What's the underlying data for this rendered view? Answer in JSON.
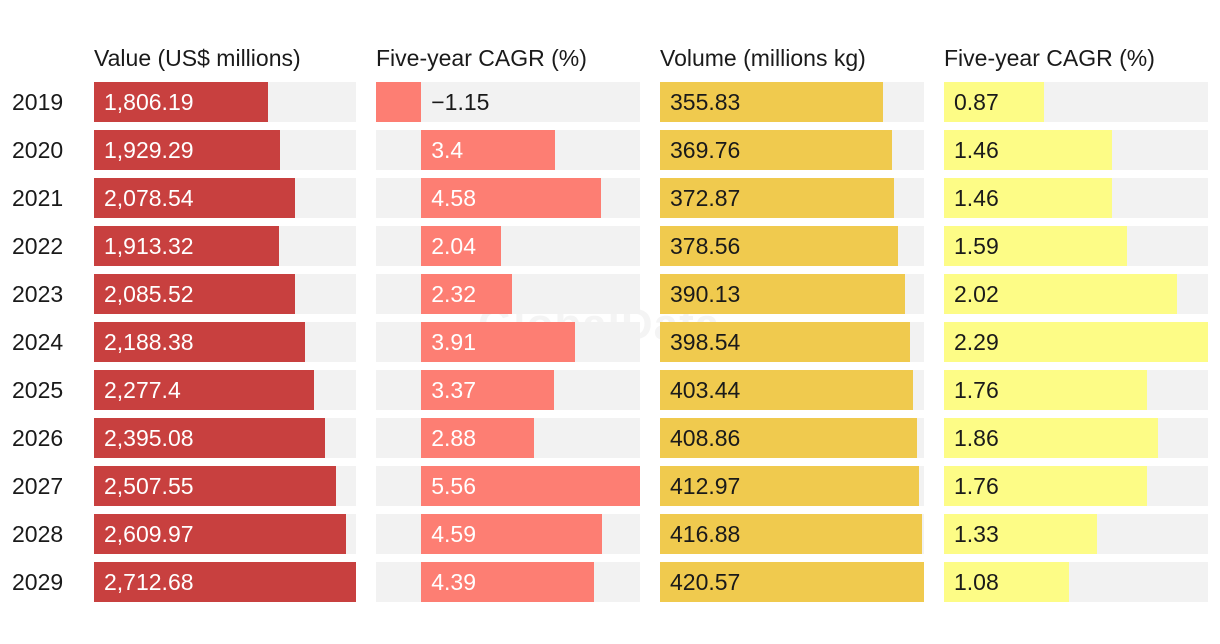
{
  "watermark": "GlobalData",
  "chart_data": {
    "type": "table",
    "title": "",
    "years": [
      "2019",
      "2020",
      "2021",
      "2022",
      "2023",
      "2024",
      "2025",
      "2026",
      "2027",
      "2028",
      "2029"
    ],
    "columns": [
      {
        "key": "value",
        "header": "Value (US$ millions)",
        "color": "#c8403f",
        "track_color": "#f2f2f2",
        "text_color": "#ffffff",
        "values": [
          1806.19,
          1929.29,
          2078.54,
          1913.32,
          2085.52,
          2188.38,
          2277.4,
          2395.08,
          2507.55,
          2609.97,
          2712.68
        ],
        "labels": [
          "1,806.19",
          "1,929.29",
          "2,078.54",
          "1,913.32",
          "2,085.52",
          "2,188.38",
          "2,277.4",
          "2,395.08",
          "2,507.55",
          "2,609.97",
          "2,712.68"
        ],
        "axis_min": 0,
        "axis_max": 2712.68
      },
      {
        "key": "value_cagr",
        "header": "Five-year CAGR (%)",
        "color": "#fd7e73",
        "track_color": "#f2f2f2",
        "text_color": "#ffffff",
        "negative_text_color": "#1a1a1a",
        "values": [
          -1.15,
          3.4,
          4.58,
          2.04,
          2.32,
          3.91,
          3.37,
          2.88,
          5.56,
          4.59,
          4.39
        ],
        "labels": [
          "−1.15",
          "3.4",
          "4.58",
          "2.04",
          "2.32",
          "3.91",
          "3.37",
          "2.88",
          "5.56",
          "4.59",
          "4.39"
        ],
        "axis_min": -1.15,
        "axis_max": 5.56
      },
      {
        "key": "volume",
        "header": "Volume (millions kg)",
        "color": "#f0ca4e",
        "track_color": "#f2f2f2",
        "text_color": "#1a1a1a",
        "values": [
          355.83,
          369.76,
          372.87,
          378.56,
          390.13,
          398.54,
          403.44,
          408.86,
          412.97,
          416.88,
          420.57
        ],
        "labels": [
          "355.83",
          "369.76",
          "372.87",
          "378.56",
          "390.13",
          "398.54",
          "403.44",
          "408.86",
          "412.97",
          "416.88",
          "420.57"
        ],
        "axis_min": 0,
        "axis_max": 420.57
      },
      {
        "key": "volume_cagr",
        "header": "Five-year CAGR (%)",
        "color": "#fdfc86",
        "track_color": "#f2f2f2",
        "text_color": "#1a1a1a",
        "values": [
          0.87,
          1.46,
          1.46,
          1.59,
          2.02,
          2.29,
          1.76,
          1.86,
          1.76,
          1.33,
          1.08
        ],
        "labels": [
          "0.87",
          "1.46",
          "1.46",
          "1.59",
          "2.02",
          "2.29",
          "1.76",
          "1.86",
          "1.76",
          "1.33",
          "1.08"
        ],
        "axis_min": 0,
        "axis_max": 2.29
      }
    ]
  }
}
